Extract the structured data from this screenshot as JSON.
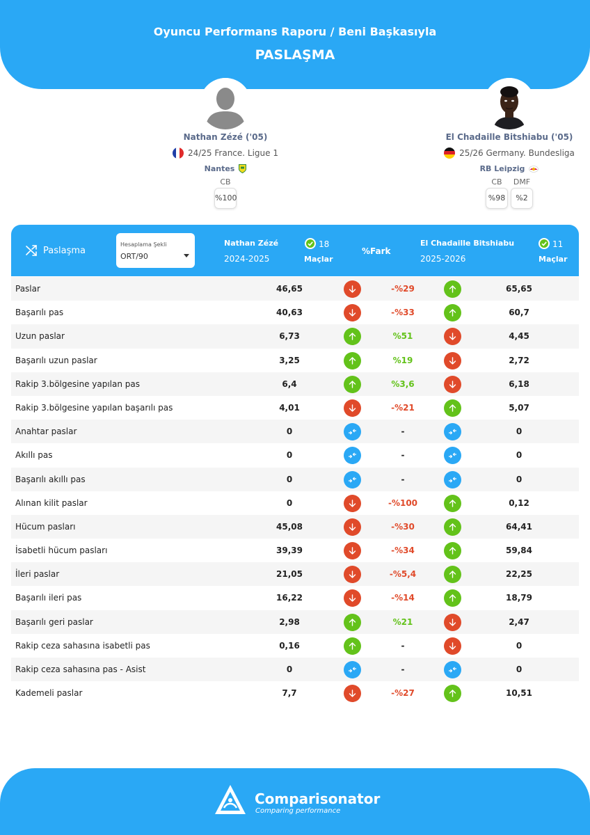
{
  "header": {
    "title": "Oyuncu Performans Raporu / Beni Başkasıyla",
    "subtitle": "PASLAŞMA"
  },
  "players": [
    {
      "name": "Nathan Zézé ('05)",
      "league": "24/25 France. Ligue 1",
      "team": "Nantes",
      "positions": [
        {
          "label": "CB",
          "value": "%100"
        }
      ]
    },
    {
      "name": "El Chadaille Bitshiabu ('05)",
      "league": "25/26 Germany. Bundesliga",
      "team": "RB Leipzig",
      "positions": [
        {
          "label": "CB",
          "value": "%98"
        },
        {
          "label": "DMF",
          "value": "%2"
        }
      ]
    }
  ],
  "table_header": {
    "section": "Paslaşma",
    "calc_label": "Hesaplama Şekli",
    "calc_value": "ORT/90",
    "p1_name": "Nathan Zézé",
    "p1_season": "2024-2025",
    "p1_matches": "18",
    "p2_name": "El Chadaille Bitshiabu",
    "p2_season": "2025-2026",
    "p2_matches": "11",
    "matches_label": "Maçlar",
    "diff_label": "%Fark"
  },
  "colors": {
    "brand_blue": "#2aa8f5",
    "better_green": "#63c21a",
    "worse_red": "#e04a2a",
    "equal_blue": "#2aa8f5"
  },
  "rows": [
    {
      "label": "Paslar",
      "v1": "46,65",
      "diff": "-%29",
      "v2": "65,65",
      "s1": "down",
      "s2": "up"
    },
    {
      "label": "Başarılı pas",
      "v1": "40,63",
      "diff": "-%33",
      "v2": "60,7",
      "s1": "down",
      "s2": "up"
    },
    {
      "label": "Uzun paslar",
      "v1": "6,73",
      "diff": "%51",
      "v2": "4,45",
      "s1": "up",
      "s2": "down"
    },
    {
      "label": "Başarılı uzun paslar",
      "v1": "3,25",
      "diff": "%19",
      "v2": "2,72",
      "s1": "up",
      "s2": "down"
    },
    {
      "label": "Rakip 3.bölgesine yapılan pas",
      "v1": "6,4",
      "diff": "%3,6",
      "v2": "6,18",
      "s1": "up",
      "s2": "down"
    },
    {
      "label": "Rakip 3.bölgesine yapılan başarılı pas",
      "v1": "4,01",
      "diff": "-%21",
      "v2": "5,07",
      "s1": "down",
      "s2": "up"
    },
    {
      "label": "Anahtar paslar",
      "v1": "0",
      "diff": "-",
      "v2": "0",
      "s1": "equal",
      "s2": "equal"
    },
    {
      "label": "Akıllı pas",
      "v1": "0",
      "diff": "-",
      "v2": "0",
      "s1": "equal",
      "s2": "equal"
    },
    {
      "label": "Başarılı akıllı pas",
      "v1": "0",
      "diff": "-",
      "v2": "0",
      "s1": "equal",
      "s2": "equal"
    },
    {
      "label": "Alınan kilit paslar",
      "v1": "0",
      "diff": "-%100",
      "v2": "0,12",
      "s1": "down",
      "s2": "up"
    },
    {
      "label": "Hücum pasları",
      "v1": "45,08",
      "diff": "-%30",
      "v2": "64,41",
      "s1": "down",
      "s2": "up"
    },
    {
      "label": "İsabetli hücum pasları",
      "v1": "39,39",
      "diff": "-%34",
      "v2": "59,84",
      "s1": "down",
      "s2": "up"
    },
    {
      "label": "İleri paslar",
      "v1": "21,05",
      "diff": "-%5,4",
      "v2": "22,25",
      "s1": "down",
      "s2": "up"
    },
    {
      "label": "Başarılı ileri pas",
      "v1": "16,22",
      "diff": "-%14",
      "v2": "18,79",
      "s1": "down",
      "s2": "up"
    },
    {
      "label": "Başarılı geri paslar",
      "v1": "2,98",
      "diff": "%21",
      "v2": "2,47",
      "s1": "up",
      "s2": "down"
    },
    {
      "label": "Rakip ceza sahasına isabetli pas",
      "v1": "0,16",
      "diff": "-",
      "v2": "0",
      "s1": "up",
      "s2": "down"
    },
    {
      "label": "Rakip ceza sahasına pas - Asist",
      "v1": "0",
      "diff": "-",
      "v2": "0",
      "s1": "equal",
      "s2": "equal"
    },
    {
      "label": "Kademeli paslar",
      "v1": "7,7",
      "diff": "-%27",
      "v2": "10,51",
      "s1": "down",
      "s2": "up"
    }
  ],
  "footer": {
    "brand": "Comparisonator",
    "tagline": "Comparing performance"
  }
}
